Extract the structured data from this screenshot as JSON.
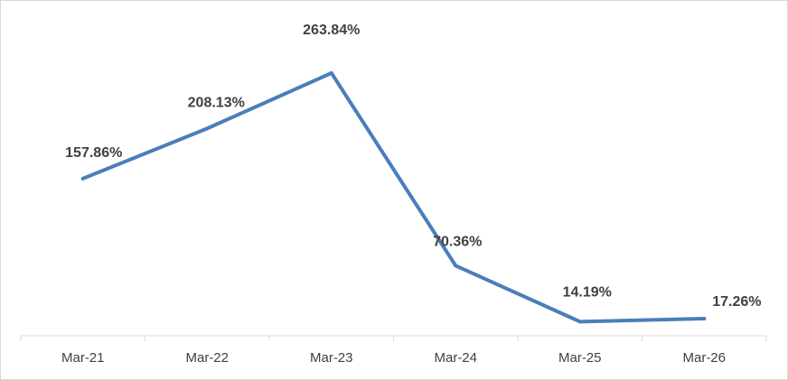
{
  "chart_data": {
    "type": "line",
    "title": "",
    "xlabel": "",
    "ylabel": "",
    "categories": [
      "Mar-21",
      "Mar-22",
      "Mar-23",
      "Mar-24",
      "Mar-25",
      "Mar-26"
    ],
    "series": [
      {
        "values": [
          157.86,
          208.13,
          263.84,
          70.36,
          14.19,
          17.26
        ],
        "labels": [
          "157.86%",
          "208.13%",
          "263.84%",
          "70.36%",
          "14.19%",
          "17.26%"
        ],
        "color": "#4a7ebb"
      }
    ],
    "ylim": [
      0,
      300
    ],
    "grid": false,
    "legend": "none"
  }
}
